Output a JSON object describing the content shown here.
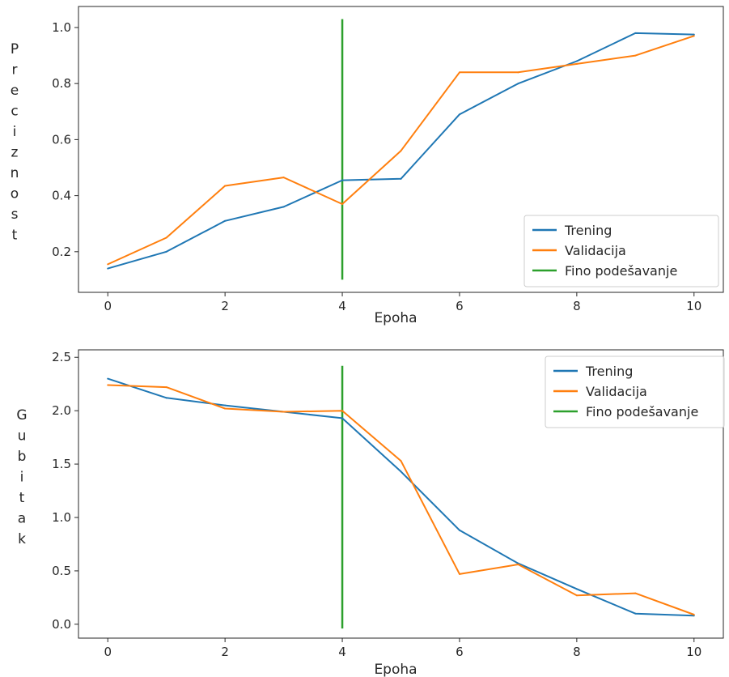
{
  "chart_data": [
    {
      "type": "line",
      "title": "",
      "xlabel": "Epoha",
      "ylabel": "Preciznost",
      "xlim": [
        -0.5,
        10.5
      ],
      "ylim": [
        0.055,
        1.075
      ],
      "xticks": [
        0,
        2,
        4,
        6,
        8,
        10
      ],
      "yticks": [
        0.2,
        0.4,
        0.6,
        0.8,
        1.0
      ],
      "ytick_labels": [
        "0.2",
        "0.4",
        "0.6",
        "0.8",
        "1.0"
      ],
      "legend_position": "lower-right",
      "x": [
        0,
        1,
        2,
        3,
        4,
        5,
        6,
        7,
        8,
        9,
        10
      ],
      "series": [
        {
          "name": "Trening",
          "color": "#1f77b4",
          "values": [
            0.14,
            0.2,
            0.31,
            0.36,
            0.455,
            0.46,
            0.69,
            0.8,
            0.88,
            0.98,
            0.975
          ]
        },
        {
          "name": "Validacija",
          "color": "#ff7f0e",
          "values": [
            0.155,
            0.25,
            0.435,
            0.465,
            0.37,
            0.56,
            0.84,
            0.84,
            0.87,
            0.9,
            0.97
          ]
        }
      ],
      "vline": {
        "name": "Fino podešavanje",
        "color": "#2ca02c",
        "x": 4,
        "y_from": 0.1,
        "y_to": 1.03
      }
    },
    {
      "type": "line",
      "title": "",
      "xlabel": "Epoha",
      "ylabel": "Gubitak",
      "xlim": [
        -0.5,
        10.5
      ],
      "ylim": [
        -0.13,
        2.57
      ],
      "xticks": [
        0,
        2,
        4,
        6,
        8,
        10
      ],
      "yticks": [
        0.0,
        0.5,
        1.0,
        1.5,
        2.0,
        2.5
      ],
      "ytick_labels": [
        "0.0",
        "0.5",
        "1.0",
        "1.5",
        "2.0",
        "2.5"
      ],
      "legend_position": "upper-right",
      "x": [
        0,
        1,
        2,
        3,
        4,
        5,
        6,
        7,
        8,
        9,
        10
      ],
      "series": [
        {
          "name": "Trening",
          "color": "#1f77b4",
          "values": [
            2.3,
            2.12,
            2.05,
            1.99,
            1.93,
            1.43,
            0.88,
            0.57,
            0.33,
            0.1,
            0.08
          ]
        },
        {
          "name": "Validacija",
          "color": "#ff7f0e",
          "values": [
            2.24,
            2.22,
            2.02,
            1.99,
            2.0,
            1.53,
            0.47,
            0.56,
            0.27,
            0.29,
            0.09
          ]
        }
      ],
      "vline": {
        "name": "Fino podešavanje",
        "color": "#2ca02c",
        "x": 4,
        "y_from": -0.04,
        "y_to": 2.42
      }
    }
  ]
}
